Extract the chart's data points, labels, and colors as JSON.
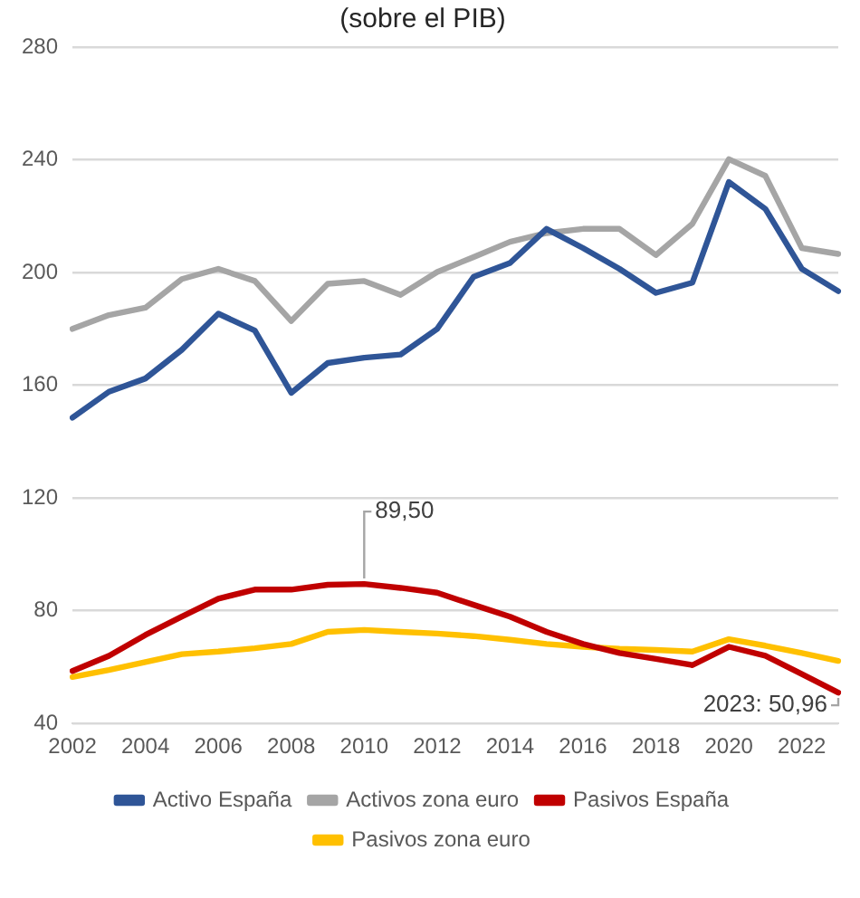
{
  "chart_data": {
    "type": "line",
    "title": "(sobre el PIB)",
    "categories": [
      "2002",
      null,
      "2004",
      null,
      "2006",
      null,
      "2008",
      null,
      "2010",
      null,
      "2012",
      null,
      "2014",
      null,
      "2016",
      null,
      "2018",
      null,
      "2020",
      null,
      "2022",
      null
    ],
    "series": [
      {
        "name": "Activo España",
        "color": "#2f5597",
        "values": [
          148.5,
          157.7,
          162.4,
          172.6,
          185.4,
          179.4,
          157.3,
          167.9,
          169.8,
          170.9,
          180,
          198.5,
          203.4,
          215.5,
          208.7,
          201.3,
          192.8,
          196.4,
          232.1,
          222.6,
          201.3,
          193.4
        ]
      },
      {
        "name": "Activos zona euro",
        "color": "#a5a5a5",
        "values": [
          180,
          184.9,
          187.5,
          197.7,
          201.3,
          197,
          182.8,
          196,
          197,
          192.1,
          200.2,
          205.5,
          210.9,
          214,
          215.5,
          215.5,
          206.2,
          217.3,
          240.2,
          234.3,
          208.7,
          206.6
        ]
      },
      {
        "name": "Pasivos España",
        "color": "#c00000",
        "values": [
          58.6,
          64,
          71.4,
          77.9,
          84.3,
          87.5,
          87.5,
          89.2,
          89.5,
          88.1,
          86.4,
          82.1,
          77.9,
          72.5,
          68.2,
          65,
          62.9,
          60.7,
          67.2,
          64,
          57.5,
          50.96
        ]
      },
      {
        "name": "Pasivos zona euro",
        "color": "#ffc000",
        "values": [
          56.5,
          59,
          61.8,
          64.6,
          65.5,
          66.7,
          68.2,
          72.5,
          73.2,
          72.5,
          71.9,
          71,
          69.7,
          68.2,
          67.2,
          66.5,
          66.1,
          65.5,
          69.9,
          67.6,
          65,
          62.2
        ]
      }
    ],
    "ylim": [
      40,
      280
    ],
    "yticks": [
      40,
      80,
      120,
      160,
      200,
      240,
      280
    ],
    "grid": "y",
    "legend": "bottom",
    "marker": "none",
    "line_style": "solid",
    "annotations": [
      {
        "text": "89,50",
        "x": "2010",
        "y": 89.5
      },
      "2023: 50,96"
    ]
  }
}
